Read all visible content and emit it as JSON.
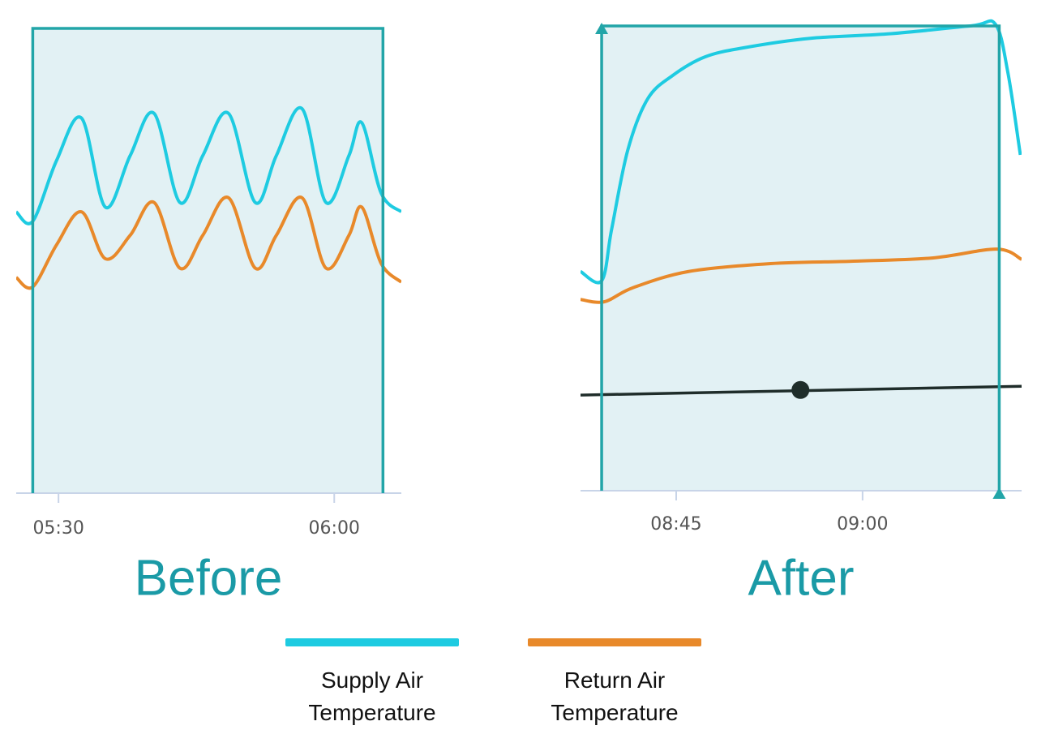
{
  "chart_data": [
    {
      "type": "line",
      "title": "Before",
      "xlim": [
        325.4,
        367.3
      ],
      "ylim": [
        0,
        100
      ],
      "xticks": [
        {
          "value": 330,
          "label": "05:30"
        },
        {
          "value": 360,
          "label": "06:00"
        }
      ],
      "selection": [
        327.2,
        365.3
      ],
      "series": [
        {
          "name": "Supply Air Temperature",
          "color": "#1ecbe1",
          "x": [
            325.4,
            327.2,
            329.8,
            332.5,
            335.1,
            337.8,
            340.4,
            343.2,
            345.7,
            348.5,
            351.4,
            353.7,
            356.5,
            359.1,
            361.6,
            363,
            365.1,
            367.3
          ],
          "values": [
            60,
            58,
            71,
            80,
            61,
            72,
            81,
            62,
            72,
            81,
            62,
            72,
            82,
            62,
            72,
            79,
            64,
            60
          ]
        },
        {
          "name": "Return Air Temperature",
          "color": "#e8892a",
          "x": [
            325.4,
            327.2,
            329.8,
            332.5,
            335.1,
            337.8,
            340.4,
            343.2,
            345.7,
            348.5,
            351.4,
            353.7,
            356.5,
            359.1,
            361.6,
            363,
            365.1,
            367.3
          ],
          "values": [
            46,
            44,
            53,
            60,
            50,
            55,
            62,
            48,
            55,
            63,
            48,
            55,
            63,
            48,
            55,
            61,
            49,
            45
          ]
        }
      ]
    },
    {
      "type": "line",
      "title": "After",
      "xlim": [
        517.3,
        552.8
      ],
      "ylim": [
        0,
        100
      ],
      "xticks": [
        {
          "value": 525,
          "label": "08:45"
        },
        {
          "value": 540,
          "label": "09:00"
        }
      ],
      "selection": [
        519,
        551
      ],
      "series": [
        {
          "name": "Supply Air Temperature",
          "color": "#1ecbe1",
          "x": [
            517.3,
            519,
            519.8,
            521.1,
            522.7,
            524.7,
            527.3,
            530.5,
            535.8,
            542.3,
            548.8,
            550.7,
            551.7,
            552.7
          ],
          "values": [
            47,
            45,
            56,
            73,
            84,
            89,
            93,
            95,
            97,
            98,
            99.7,
            100,
            89.6,
            72
          ]
        },
        {
          "name": "Return Air Temperature",
          "color": "#e8892a",
          "x": [
            517.3,
            519.2,
            521.5,
            526,
            532.6,
            539.1,
            545.6,
            550.8,
            552.8
          ],
          "values": [
            41,
            40.5,
            43.5,
            47,
            48.7,
            49.2,
            49.9,
            51.8,
            49.6
          ]
        },
        {
          "color": "#1f2d2a",
          "x": [
            517.3,
            552.8
          ],
          "values": [
            20.5,
            22.4
          ]
        },
        {
          "color": "#1f2d2a",
          "x": [
            535
          ],
          "values": [
            21.6
          ],
          "marker": true
        }
      ]
    }
  ]
}
